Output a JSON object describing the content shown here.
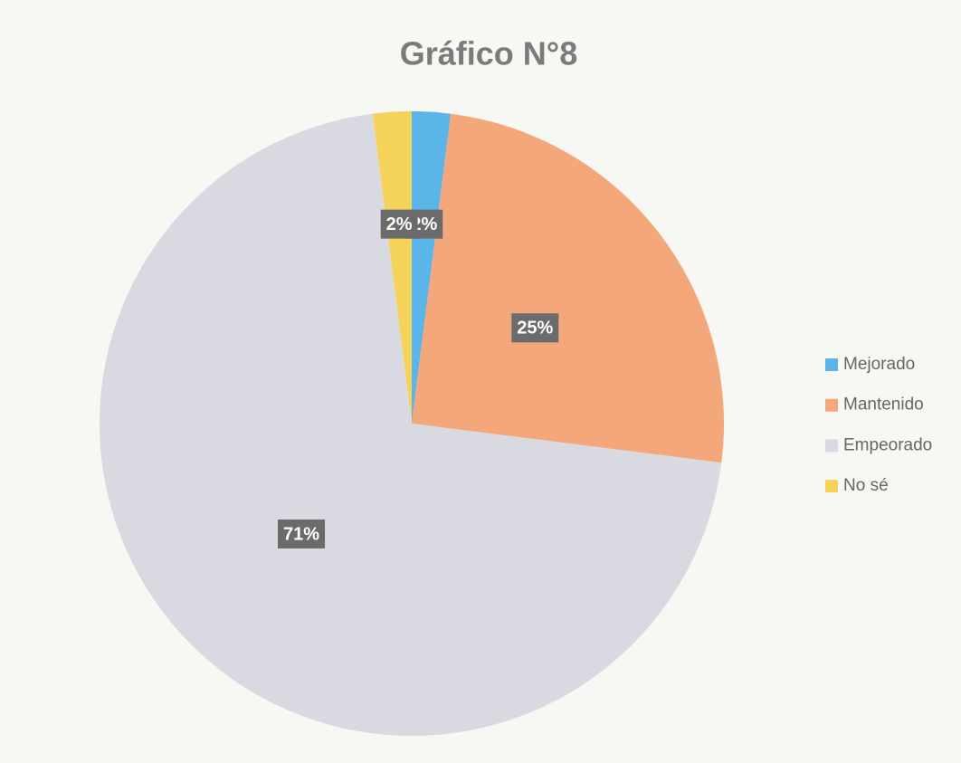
{
  "chart_data": {
    "type": "pie",
    "title": "Gráfico N°8",
    "categories": [
      "Mejorado",
      "Mantenido",
      "Empeorado",
      "No sé"
    ],
    "values": [
      2,
      25,
      71,
      2
    ],
    "value_labels": [
      "2%",
      "25%",
      "71%",
      "2%"
    ],
    "colors": [
      "#5bb5e8",
      "#f4a77a",
      "#d9d9e2",
      "#f5d35a"
    ],
    "legend": "right"
  }
}
